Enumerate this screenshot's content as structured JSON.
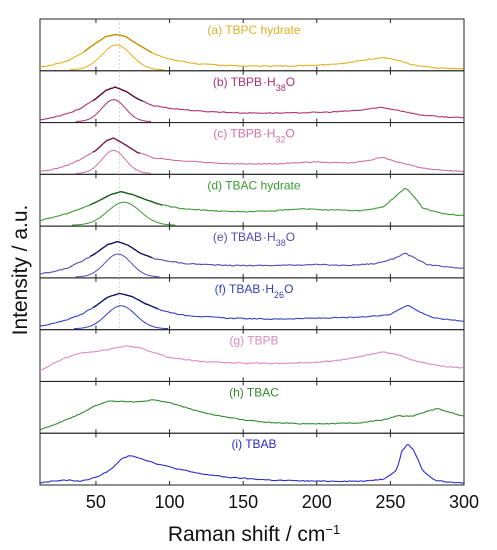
{
  "chart_data": {
    "type": "line",
    "xlabel": "Raman shift / cm",
    "xlabel_superscript": "−1",
    "ylabel": "Intensity / a.u.",
    "xlim": [
      12,
      300
    ],
    "x_ticks": [
      50,
      100,
      150,
      200,
      250,
      300
    ],
    "x_tick_labels": [
      "50",
      "100",
      "150",
      "200",
      "250",
      "300"
    ],
    "reference_line_x": 66,
    "panels": [
      {
        "label_prefix": "(a) TBPC hydrate",
        "label_sub": "",
        "label_suffix": "",
        "color": "#e0b020",
        "fit_color": "#c98a00",
        "spectrum": [
          [
            12,
            0.08
          ],
          [
            20,
            0.12
          ],
          [
            30,
            0.2
          ],
          [
            40,
            0.36
          ],
          [
            50,
            0.58
          ],
          [
            57,
            0.72
          ],
          [
            64,
            0.76
          ],
          [
            70,
            0.72
          ],
          [
            78,
            0.56
          ],
          [
            88,
            0.38
          ],
          [
            100,
            0.24
          ],
          [
            120,
            0.14
          ],
          [
            150,
            0.1
          ],
          [
            180,
            0.1
          ],
          [
            200,
            0.12
          ],
          [
            220,
            0.16
          ],
          [
            235,
            0.24
          ],
          [
            245,
            0.28
          ],
          [
            255,
            0.22
          ],
          [
            265,
            0.12
          ],
          [
            280,
            0.06
          ],
          [
            300,
            0.04
          ]
        ],
        "fit_x_range": [
          42,
          88
        ],
        "component": {
          "center": 64,
          "width": 10,
          "height": 0.52
        }
      },
      {
        "label_prefix": "(b) TBPB",
        "label_sub": "38",
        "label_suffix": "O",
        "color": "#b03070",
        "fit_color": "#5a0c30",
        "spectrum": [
          [
            12,
            0.06
          ],
          [
            20,
            0.1
          ],
          [
            30,
            0.18
          ],
          [
            40,
            0.3
          ],
          [
            50,
            0.5
          ],
          [
            57,
            0.68
          ],
          [
            63,
            0.74
          ],
          [
            70,
            0.66
          ],
          [
            78,
            0.5
          ],
          [
            88,
            0.36
          ],
          [
            100,
            0.3
          ],
          [
            120,
            0.24
          ],
          [
            150,
            0.2
          ],
          [
            180,
            0.2
          ],
          [
            210,
            0.22
          ],
          [
            230,
            0.26
          ],
          [
            243,
            0.32
          ],
          [
            255,
            0.26
          ],
          [
            270,
            0.16
          ],
          [
            285,
            0.12
          ],
          [
            300,
            0.1
          ]
        ],
        "fit_x_range": [
          48,
          82
        ],
        "component": {
          "center": 62,
          "width": 8,
          "height": 0.46
        }
      },
      {
        "label_prefix": "(c) TBPB",
        "label_sub": "32",
        "label_suffix": "O",
        "color": "#d070a0",
        "fit_color": "#7a1448",
        "spectrum": [
          [
            12,
            0.06
          ],
          [
            20,
            0.1
          ],
          [
            30,
            0.18
          ],
          [
            40,
            0.32
          ],
          [
            50,
            0.5
          ],
          [
            57,
            0.7
          ],
          [
            62,
            0.76
          ],
          [
            70,
            0.62
          ],
          [
            78,
            0.46
          ],
          [
            90,
            0.34
          ],
          [
            110,
            0.28
          ],
          [
            140,
            0.22
          ],
          [
            170,
            0.22
          ],
          [
            200,
            0.26
          ],
          [
            220,
            0.24
          ],
          [
            235,
            0.28
          ],
          [
            244,
            0.36
          ],
          [
            255,
            0.26
          ],
          [
            270,
            0.14
          ],
          [
            285,
            0.08
          ],
          [
            300,
            0.06
          ]
        ],
        "fit_x_range": [
          48,
          80
        ],
        "component": {
          "center": 62,
          "width": 8,
          "height": 0.48
        }
      },
      {
        "label_prefix": "(d) TBAC hydrate",
        "label_sub": "",
        "label_suffix": "",
        "color": "#3a9a32",
        "fit_color": "#1a5a1a",
        "spectrum": [
          [
            12,
            0.12
          ],
          [
            20,
            0.18
          ],
          [
            30,
            0.26
          ],
          [
            40,
            0.36
          ],
          [
            50,
            0.5
          ],
          [
            60,
            0.66
          ],
          [
            67,
            0.72
          ],
          [
            75,
            0.66
          ],
          [
            85,
            0.54
          ],
          [
            95,
            0.44
          ],
          [
            110,
            0.36
          ],
          [
            130,
            0.32
          ],
          [
            150,
            0.3
          ],
          [
            170,
            0.32
          ],
          [
            190,
            0.36
          ],
          [
            210,
            0.34
          ],
          [
            230,
            0.32
          ],
          [
            245,
            0.4
          ],
          [
            255,
            0.66
          ],
          [
            260,
            0.8
          ],
          [
            265,
            0.66
          ],
          [
            272,
            0.38
          ],
          [
            285,
            0.26
          ],
          [
            300,
            0.22
          ]
        ],
        "fit_x_range": [
          46,
          95
        ],
        "component": {
          "center": 69,
          "width": 11,
          "height": 0.48
        }
      },
      {
        "label_prefix": "(e) TBAB",
        "label_sub": "38",
        "label_suffix": "O",
        "color": "#5a46b4",
        "fit_color": "#1a1060",
        "spectrum": [
          [
            12,
            0.08
          ],
          [
            20,
            0.12
          ],
          [
            30,
            0.2
          ],
          [
            40,
            0.34
          ],
          [
            50,
            0.52
          ],
          [
            58,
            0.7
          ],
          [
            65,
            0.76
          ],
          [
            72,
            0.68
          ],
          [
            80,
            0.52
          ],
          [
            90,
            0.4
          ],
          [
            110,
            0.3
          ],
          [
            140,
            0.26
          ],
          [
            170,
            0.26
          ],
          [
            200,
            0.28
          ],
          [
            220,
            0.26
          ],
          [
            240,
            0.3
          ],
          [
            252,
            0.4
          ],
          [
            260,
            0.52
          ],
          [
            266,
            0.42
          ],
          [
            275,
            0.28
          ],
          [
            290,
            0.22
          ],
          [
            300,
            0.2
          ]
        ],
        "fit_x_range": [
          46,
          88
        ],
        "component": {
          "center": 65,
          "width": 9,
          "height": 0.48
        }
      },
      {
        "label_prefix": "(f) TBAB",
        "label_sub": "26",
        "label_suffix": "O",
        "color": "#3040c0",
        "fit_color": "#101860",
        "spectrum": [
          [
            12,
            0.08
          ],
          [
            20,
            0.12
          ],
          [
            30,
            0.2
          ],
          [
            40,
            0.32
          ],
          [
            50,
            0.5
          ],
          [
            58,
            0.68
          ],
          [
            66,
            0.76
          ],
          [
            74,
            0.7
          ],
          [
            84,
            0.54
          ],
          [
            95,
            0.4
          ],
          [
            110,
            0.3
          ],
          [
            140,
            0.24
          ],
          [
            170,
            0.22
          ],
          [
            200,
            0.24
          ],
          [
            230,
            0.26
          ],
          [
            250,
            0.32
          ],
          [
            258,
            0.46
          ],
          [
            262,
            0.52
          ],
          [
            268,
            0.4
          ],
          [
            280,
            0.24
          ],
          [
            300,
            0.18
          ]
        ],
        "fit_x_range": [
          48,
          92
        ],
        "component": {
          "center": 67,
          "width": 10,
          "height": 0.48
        }
      },
      {
        "label_prefix": "(g) TBPB",
        "label_sub": "",
        "label_suffix": "",
        "color": "#e088c0",
        "fit_color": "",
        "spectrum": [
          [
            12,
            0.22
          ],
          [
            20,
            0.36
          ],
          [
            30,
            0.5
          ],
          [
            40,
            0.6
          ],
          [
            50,
            0.62
          ],
          [
            60,
            0.68
          ],
          [
            70,
            0.74
          ],
          [
            80,
            0.7
          ],
          [
            90,
            0.6
          ],
          [
            100,
            0.5
          ],
          [
            120,
            0.42
          ],
          [
            150,
            0.38
          ],
          [
            180,
            0.38
          ],
          [
            200,
            0.4
          ],
          [
            220,
            0.46
          ],
          [
            235,
            0.56
          ],
          [
            245,
            0.62
          ],
          [
            255,
            0.56
          ],
          [
            268,
            0.42
          ],
          [
            285,
            0.32
          ],
          [
            300,
            0.28
          ]
        ],
        "fit_x_range": null,
        "component": null
      },
      {
        "label_prefix": "(h) TBAC",
        "label_sub": "",
        "label_suffix": "",
        "color": "#2f8a2f",
        "fit_color": "",
        "spectrum": [
          [
            12,
            0.08
          ],
          [
            20,
            0.16
          ],
          [
            30,
            0.28
          ],
          [
            40,
            0.42
          ],
          [
            50,
            0.58
          ],
          [
            60,
            0.68
          ],
          [
            70,
            0.66
          ],
          [
            80,
            0.66
          ],
          [
            90,
            0.7
          ],
          [
            100,
            0.64
          ],
          [
            115,
            0.5
          ],
          [
            130,
            0.38
          ],
          [
            150,
            0.28
          ],
          [
            170,
            0.22
          ],
          [
            190,
            0.2
          ],
          [
            210,
            0.2
          ],
          [
            230,
            0.22
          ],
          [
            245,
            0.28
          ],
          [
            255,
            0.36
          ],
          [
            265,
            0.36
          ],
          [
            275,
            0.46
          ],
          [
            282,
            0.52
          ],
          [
            290,
            0.44
          ],
          [
            300,
            0.36
          ]
        ],
        "fit_x_range": null,
        "component": null
      },
      {
        "label_prefix": "(i) TBAB",
        "label_sub": "",
        "label_suffix": "",
        "color": "#2a2acc",
        "fit_color": "",
        "spectrum": [
          [
            12,
            0.04
          ],
          [
            20,
            0.08
          ],
          [
            30,
            0.1
          ],
          [
            40,
            0.08
          ],
          [
            50,
            0.16
          ],
          [
            60,
            0.32
          ],
          [
            68,
            0.56
          ],
          [
            74,
            0.62
          ],
          [
            82,
            0.54
          ],
          [
            92,
            0.44
          ],
          [
            105,
            0.34
          ],
          [
            120,
            0.24
          ],
          [
            140,
            0.16
          ],
          [
            170,
            0.1
          ],
          [
            200,
            0.08
          ],
          [
            230,
            0.08
          ],
          [
            245,
            0.12
          ],
          [
            254,
            0.3
          ],
          [
            258,
            0.72
          ],
          [
            262,
            0.86
          ],
          [
            266,
            0.72
          ],
          [
            272,
            0.3
          ],
          [
            280,
            0.1
          ],
          [
            290,
            0.06
          ],
          [
            300,
            0.04
          ]
        ],
        "fit_x_range": null,
        "component": null
      }
    ]
  }
}
